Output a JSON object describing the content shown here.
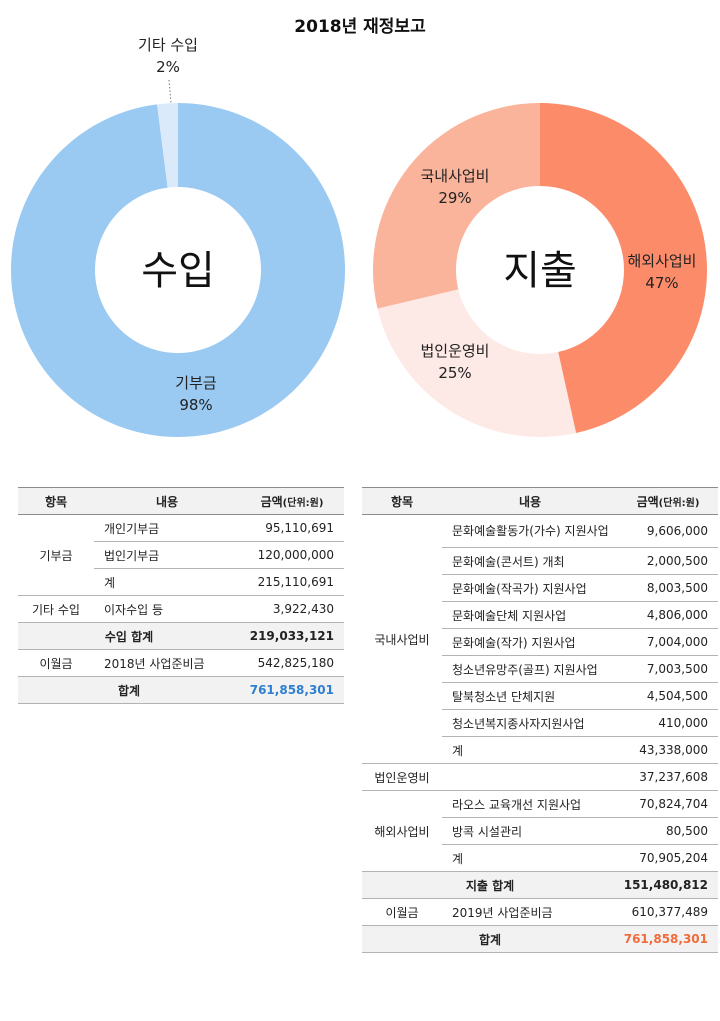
{
  "title": "2018년 재정보고",
  "chart_data": [
    {
      "type": "pie",
      "center_label": "수입",
      "labels": [
        "기부금",
        "기타 수입"
      ],
      "values": [
        98,
        2
      ],
      "value_labels": [
        "98%",
        "2%"
      ],
      "colors": [
        "#9ac9f2",
        "#dbeafb"
      ]
    },
    {
      "type": "pie",
      "center_label": "지출",
      "labels": [
        "해외사업비",
        "법인운영비",
        "국내사업비"
      ],
      "values": [
        47,
        25,
        29
      ],
      "value_labels": [
        "47%",
        "25%",
        "29%"
      ],
      "colors": [
        "#fc8c69",
        "#fde9e5",
        "#fab49c"
      ]
    }
  ],
  "income_table": {
    "headers": [
      "항목",
      "내용",
      "금액",
      "(단위:원)"
    ],
    "groups": [
      {
        "category": "기부금",
        "rows": [
          {
            "desc": "개인기부금",
            "amount": "95,110,691"
          },
          {
            "desc": "법인기부금",
            "amount": "120,000,000"
          },
          {
            "desc": "계",
            "amount": "215,110,691"
          }
        ]
      },
      {
        "category": "기타 수입",
        "rows": [
          {
            "desc": "이자수입 등",
            "amount": "3,922,430"
          }
        ]
      }
    ],
    "subtotal": {
      "label": "수입 합계",
      "amount": "219,033,121"
    },
    "carry": {
      "category": "이월금",
      "desc": "2018년 사업준비금",
      "amount": "542,825,180"
    },
    "total": {
      "label": "합계",
      "amount": "761,858,301",
      "color": "#2e7fd0"
    }
  },
  "expense_table": {
    "headers": [
      "항목",
      "내용",
      "금액",
      "(단위:원)"
    ],
    "groups": [
      {
        "category": "국내사업비",
        "rows": [
          {
            "desc": "문화예술활동가(가수) 지원사업",
            "amount": "9,606,000"
          },
          {
            "desc": "문화예술(콘서트) 개최",
            "amount": "2,000,500"
          },
          {
            "desc": "문화예술(작곡가) 지원사업",
            "amount": "8,003,500"
          },
          {
            "desc": "문화예술단체 지원사업",
            "amount": "4,806,000"
          },
          {
            "desc": "문화예술(작가) 지원사업",
            "amount": "7,004,000"
          },
          {
            "desc": "청소년유망주(골프) 지원사업",
            "amount": "7,003,500"
          },
          {
            "desc": "탈북청소년 단체지원",
            "amount": "4,504,500"
          },
          {
            "desc": "청소년복지종사자지원사업",
            "amount": "410,000"
          },
          {
            "desc": "계",
            "amount": "43,338,000"
          }
        ]
      },
      {
        "category": "법인운영비",
        "rows": [
          {
            "desc": "",
            "amount": "37,237,608"
          }
        ]
      },
      {
        "category": "해외사업비",
        "rows": [
          {
            "desc": "라오스 교육개선 지원사업",
            "amount": "70,824,704"
          },
          {
            "desc": "방콕 시설관리",
            "amount": "80,500"
          },
          {
            "desc": "계",
            "amount": "70,905,204"
          }
        ]
      }
    ],
    "subtotal": {
      "label": "지출 합계",
      "amount": "151,480,812"
    },
    "carry": {
      "category": "이월금",
      "desc": "2019년 사업준비금",
      "amount": "610,377,489"
    },
    "total": {
      "label": "합계",
      "amount": "761,858,301",
      "color": "#f26b3a"
    }
  }
}
